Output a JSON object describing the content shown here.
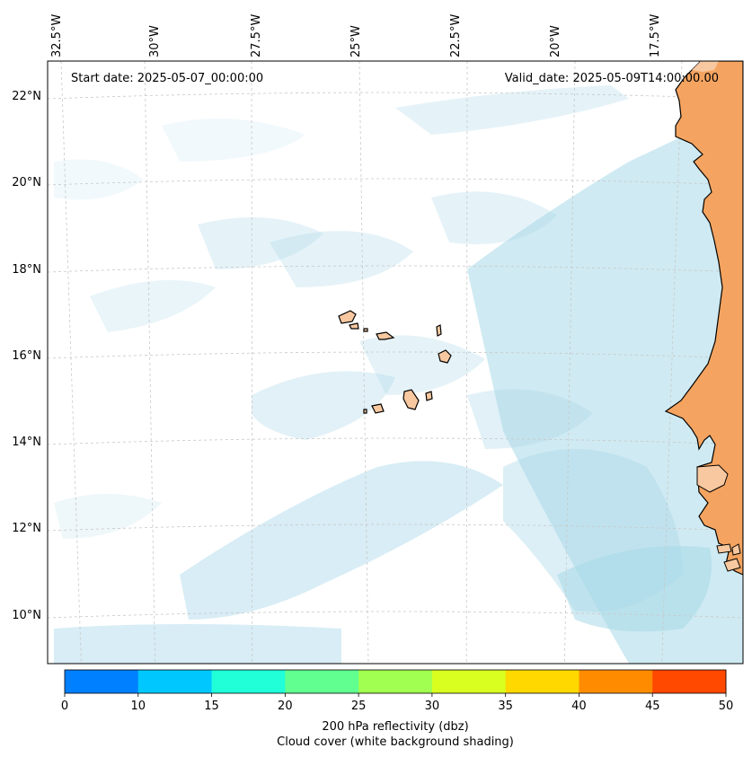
{
  "header": {
    "start_date": "Start date: 2025-05-07_00:00:00",
    "valid_date": "Valid_date: 2025-05-09T14:00:00.00"
  },
  "longitude_labels": [
    "32.5°W",
    "30°W",
    "27.5°W",
    "25°W",
    "22.5°W",
    "20°W",
    "17.5°W"
  ],
  "latitude_labels": [
    "22°N",
    "20°N",
    "18°N",
    "16°N",
    "14°N",
    "12°N",
    "10°N"
  ],
  "colorbar": {
    "ticks": [
      "0",
      "10",
      "15",
      "20",
      "25",
      "30",
      "35",
      "40",
      "45",
      "50"
    ],
    "colors": [
      "#0080ff",
      "#00c8ff",
      "#20ffd8",
      "#60ff90",
      "#a0ff50",
      "#d8ff20",
      "#ffd800",
      "#ff8c00",
      "#ff4800"
    ],
    "label_line1": "200 hPa reflectivity (dbz)",
    "label_line2": "Cloud cover (white background shading)"
  },
  "map_colors": {
    "ocean_cloud": "#a8d8e8",
    "land": "#f4a460",
    "land_light": "#f8c8a0",
    "coastline": "#000000",
    "gridline": "#c8c8c8"
  }
}
